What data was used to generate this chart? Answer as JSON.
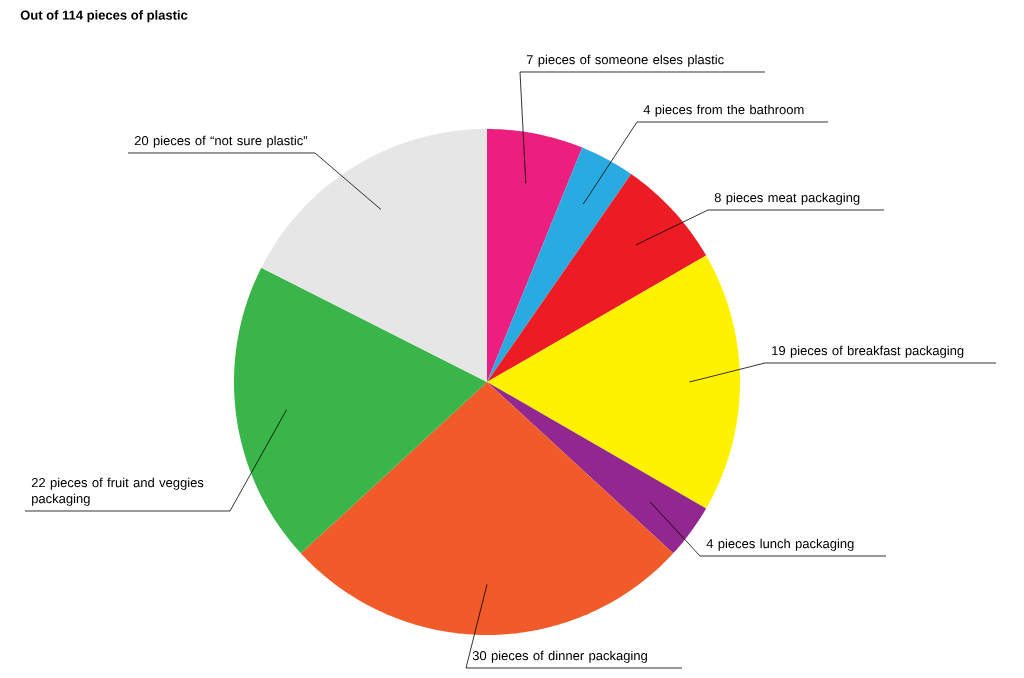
{
  "chart_data": {
    "type": "pie",
    "title": "Out of  114 pieces of plastic",
    "categories": [
      "7 pieces of someone elses plastic",
      "4 pieces from the bathroom",
      "8 pieces meat packaging",
      "19 pieces of breakfast packaging",
      "4 pieces lunch packaging",
      "30 pieces of dinner packaging",
      "22 pieces of fruit and veggies packaging",
      "20 pieces of “not sure plastic”"
    ],
    "values": [
      7,
      4,
      8,
      19,
      4,
      30,
      22,
      20
    ],
    "colors": [
      "#ec1f7f",
      "#29abe2",
      "#ed1c24",
      "#fff200",
      "#92278f",
      "#f15a29",
      "#39b54a",
      "#e6e6e7"
    ]
  }
}
